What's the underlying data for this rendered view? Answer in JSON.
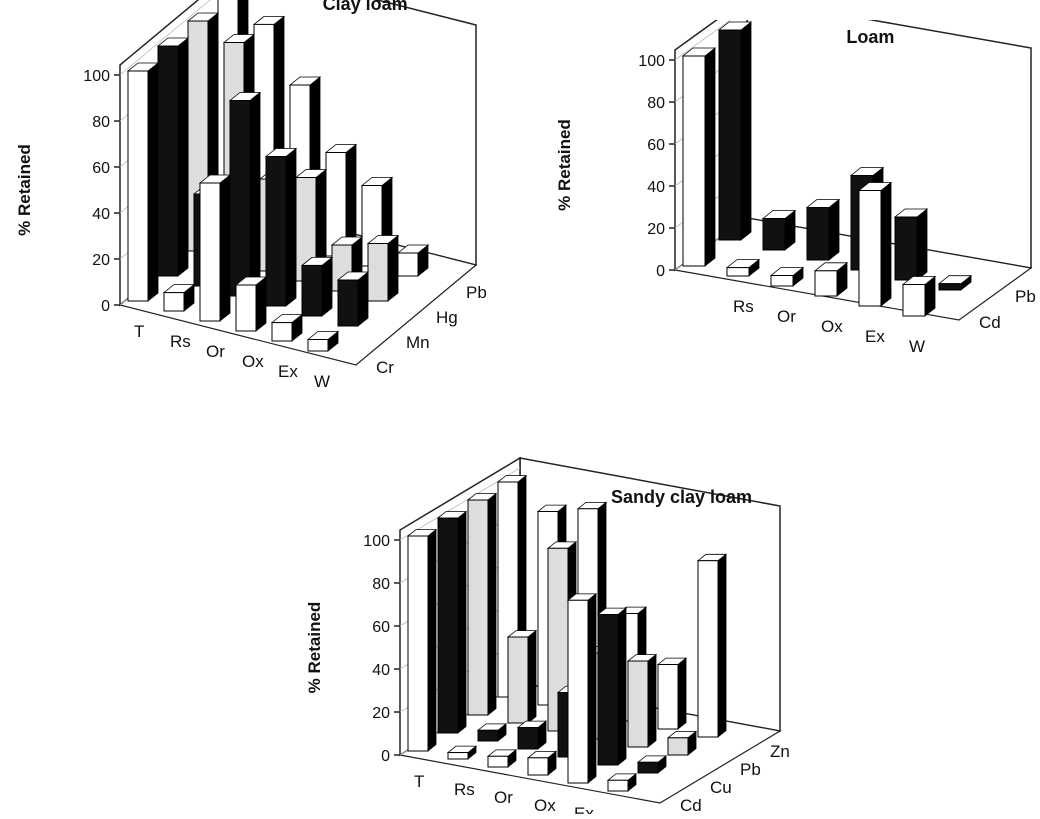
{
  "chart_data": [
    {
      "id": "chart-clay",
      "type": "bar",
      "title": "Clay loam",
      "ylabel": "% Retained",
      "ylim": [
        0,
        100
      ],
      "yticks": [
        0,
        20,
        40,
        60,
        80,
        100
      ],
      "categories": [
        "T",
        "Rs",
        "Or",
        "Ox",
        "Ex",
        "W"
      ],
      "series": [
        {
          "name": "Cr",
          "values": [
            100,
            8,
            60,
            20,
            8,
            5
          ]
        },
        {
          "name": "Mn",
          "values": [
            100,
            40,
            85,
            65,
            22,
            20
          ]
        },
        {
          "name": "Hg",
          "values": [
            100,
            95,
            40,
            45,
            20,
            25
          ]
        },
        {
          "name": "Pb",
          "values": [
            100,
            92,
            70,
            45,
            35,
            10
          ]
        }
      ]
    },
    {
      "id": "chart-loam",
      "type": "bar",
      "title": "Loam",
      "ylabel": "% Retained",
      "ylim": [
        0,
        100
      ],
      "yticks": [
        0,
        20,
        40,
        60,
        80,
        100
      ],
      "categories": [
        "Rs",
        "Or",
        "Ox",
        "Ex",
        "W"
      ],
      "series": [
        {
          "name": "Cd",
          "values": [
            4,
            5,
            12,
            55,
            15
          ]
        },
        {
          "name": "Pb",
          "values": [
            15,
            25,
            45,
            30,
            3
          ]
        }
      ],
      "total": [
        100,
        100
      ]
    },
    {
      "id": "chart-sandy",
      "type": "bar",
      "title": "Sandy clay loam",
      "ylabel": "% Retained",
      "ylim": [
        0,
        100
      ],
      "yticks": [
        0,
        20,
        40,
        60,
        80,
        100
      ],
      "categories": [
        "T",
        "Rs",
        "Or",
        "Ox",
        "Ex",
        "W"
      ],
      "series": [
        {
          "name": "Cd",
          "values": [
            100,
            3,
            5,
            8,
            85,
            5
          ]
        },
        {
          "name": "Cu",
          "values": [
            100,
            5,
            10,
            30,
            70,
            5
          ]
        },
        {
          "name": "Pb",
          "values": [
            100,
            40,
            85,
            40,
            40,
            8
          ]
        },
        {
          "name": "Zn",
          "values": [
            100,
            90,
            95,
            50,
            30,
            82
          ]
        }
      ]
    }
  ]
}
